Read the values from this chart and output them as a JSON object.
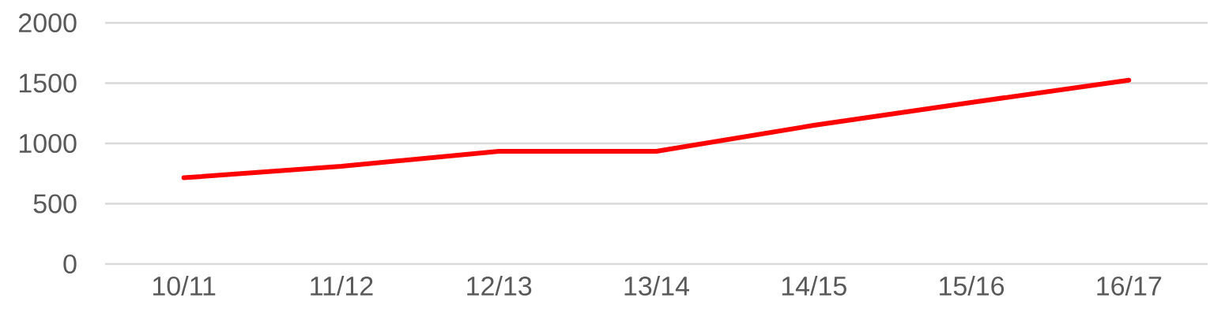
{
  "chart_data": {
    "type": "line",
    "categories": [
      "10/11",
      "11/12",
      "12/13",
      "13/14",
      "14/15",
      "15/16",
      "16/17"
    ],
    "values": [
      715,
      810,
      935,
      935,
      1150,
      1340,
      1525
    ],
    "color": "#ff0000",
    "ylim": [
      0,
      2000
    ],
    "yticks": [
      0,
      500,
      1000,
      1500,
      2000
    ],
    "grid": "y",
    "marker": "none"
  }
}
